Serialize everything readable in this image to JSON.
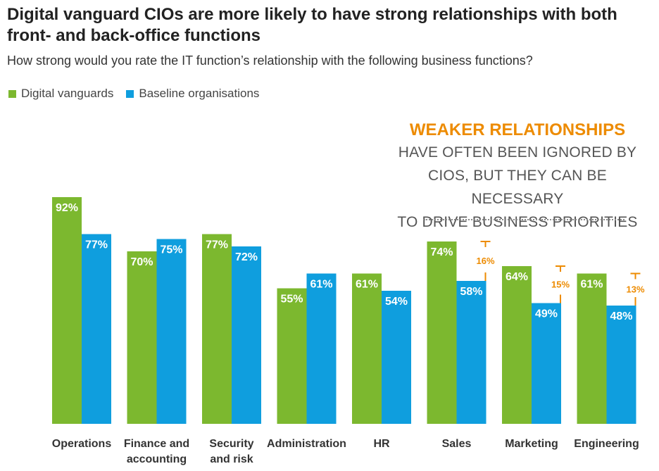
{
  "chart_data": {
    "type": "bar",
    "title": "Digital vanguard CIOs are more likely to have strong relationships with both front- and back-office functions",
    "subtitle": "How strong would you rate the IT function’s relationship with the following business functions?",
    "categories": [
      [
        "Operations"
      ],
      [
        "Finance and",
        "accounting"
      ],
      [
        "Security",
        "and risk"
      ],
      [
        "Administration"
      ],
      [
        "HR"
      ],
      [
        "Sales"
      ],
      [
        "Marketing"
      ],
      [
        "Engineering"
      ]
    ],
    "series": [
      {
        "name": "Digital vanguards",
        "color": "#7cb82f",
        "values": [
          92,
          70,
          77,
          55,
          61,
          74,
          64,
          61
        ]
      },
      {
        "name": "Baseline organisations",
        "color": "#0f9ede",
        "values": [
          77,
          75,
          72,
          61,
          54,
          58,
          49,
          48
        ]
      }
    ],
    "value_suffix": "%",
    "gaps": [
      {
        "category_index": 5,
        "label": "16%"
      },
      {
        "category_index": 6,
        "label": "15%"
      },
      {
        "category_index": 7,
        "label": "13%"
      }
    ],
    "gap_color": "#ed8b00",
    "legend_position": "top-left",
    "grid": false,
    "ylim": [
      0,
      100
    ],
    "annotation": {
      "heading": "WEAKER RELATIONSHIPS",
      "lines": [
        "HAVE OFTEN BEEN IGNORED BY",
        "CIOS, BUT THEY CAN BE NECESSARY",
        "TO DRIVE BUSINESS PRIORITIES"
      ]
    }
  }
}
